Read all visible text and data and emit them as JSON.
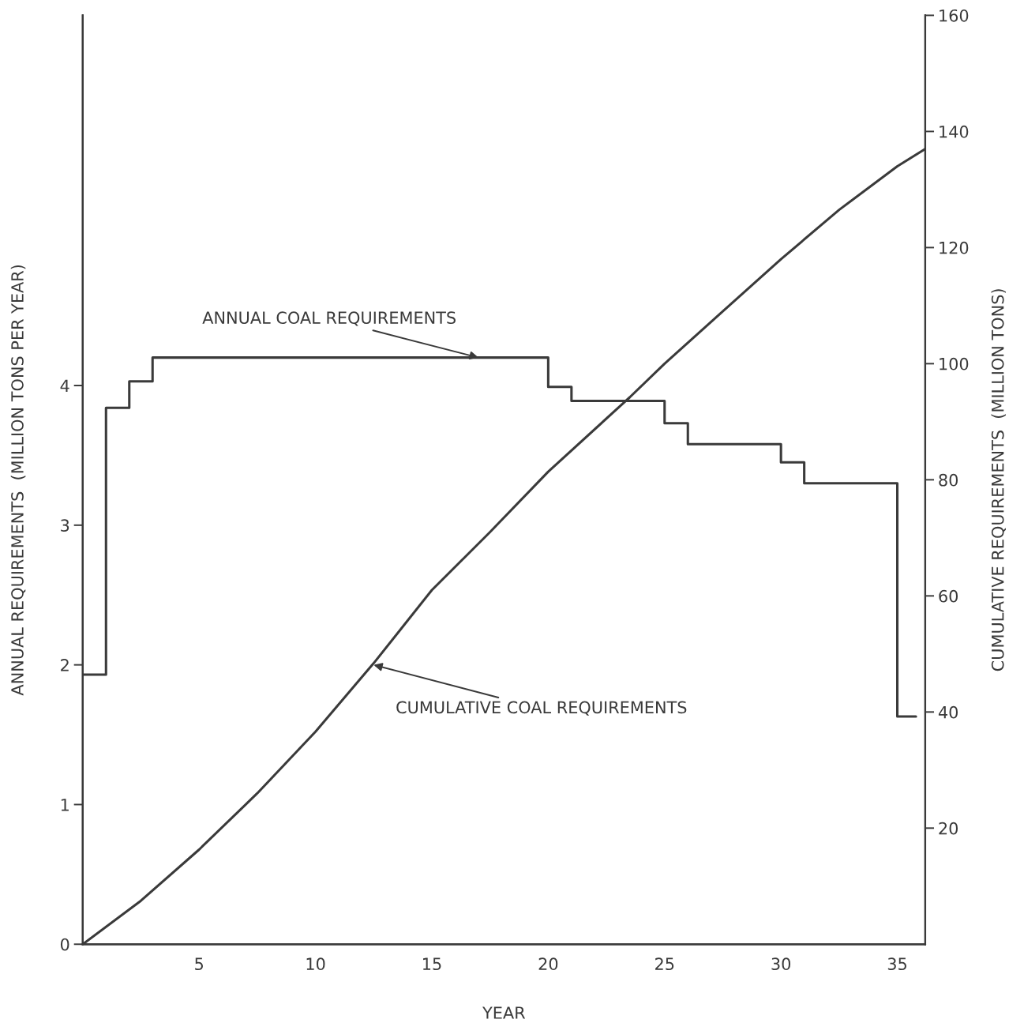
{
  "chart_data": {
    "type": "line",
    "xlabel": "YEAR",
    "ylabel": "ANNUAL REQUIREMENTS  (MILLION TONS PER YEAR)",
    "y2label": "CUMULATIVE REQUIREMENTS  (MILLION TONS)",
    "xlim": [
      0,
      36.2
    ],
    "xticks": [
      5,
      10,
      15,
      20,
      25,
      30,
      35
    ],
    "ylim": [
      0,
      6.65
    ],
    "yticks": [
      0,
      1,
      2,
      3,
      4
    ],
    "y2lim": [
      0,
      160
    ],
    "y2ticks": [
      20,
      40,
      60,
      80,
      100,
      120,
      140,
      160
    ],
    "grid": false,
    "legend": false,
    "series": [
      {
        "type": "step",
        "color": "#3a3a3a",
        "x": [
          0,
          1,
          2,
          3,
          20,
          21,
          25,
          26,
          30,
          31,
          35,
          35.8
        ],
        "values": [
          1.93,
          3.84,
          4.03,
          4.2,
          3.99,
          3.89,
          3.73,
          3.58,
          3.45,
          3.3,
          1.63,
          1.63
        ]
      },
      {
        "axis": "y2",
        "color": "#3a3a3a",
        "x": [
          0,
          2.5,
          5,
          7.5,
          10,
          12.5,
          15,
          17.5,
          20,
          23.5,
          25,
          27.5,
          30,
          32.5,
          35,
          36.2
        ],
        "values": [
          0,
          7.5,
          16.3,
          26,
          36.6,
          48.4,
          61,
          71,
          81.4,
          94.2,
          100,
          109,
          118,
          126.5,
          134,
          137
        ]
      }
    ],
    "annotations": [
      {
        "text": "ANNUAL COAL REQUIREMENTS",
        "x": 17,
        "y": 4.2
      },
      {
        "text": "CUMULATIVE COAL REQUIREMENTS",
        "x": 12.5,
        "y": 2.0
      }
    ]
  }
}
